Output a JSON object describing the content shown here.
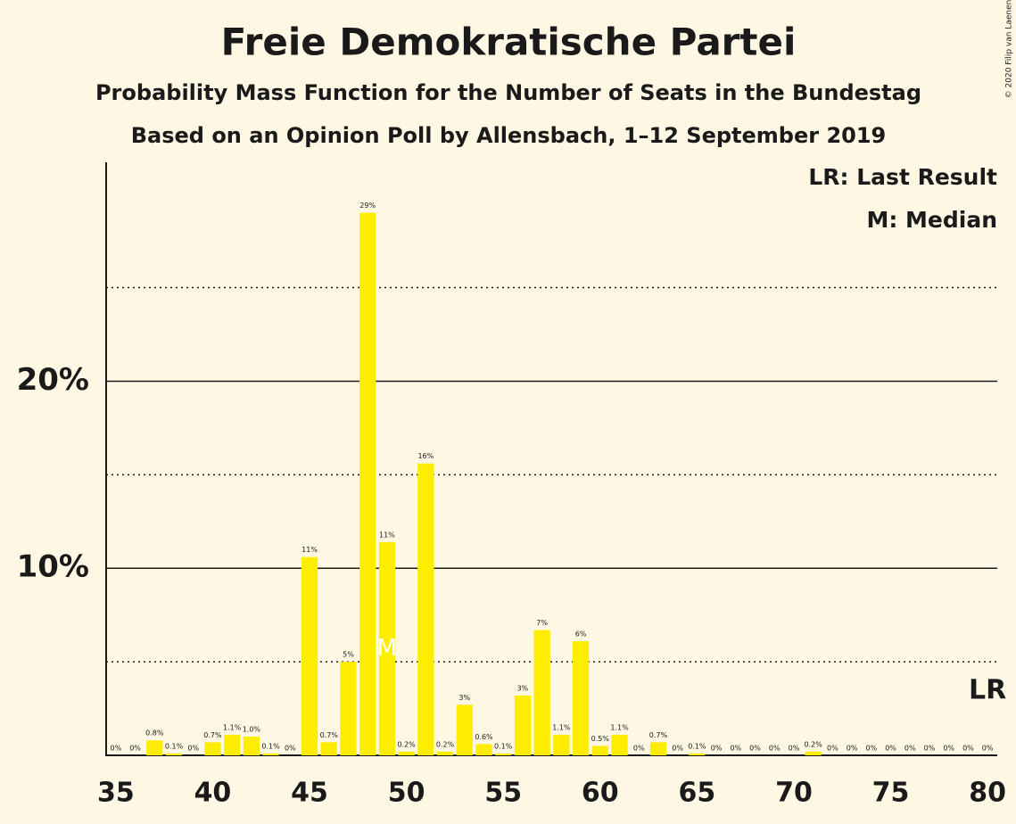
{
  "chart_data": {
    "type": "bar",
    "title": "Freie Demokratische Partei",
    "subtitle": "Probability Mass Function for the Number of Seats in the Bundestag",
    "source": "Based on an Opinion Poll by Allensbach, 1–12 September 2019",
    "legend": [
      "LR: Last Result",
      "M: Median"
    ],
    "copyright": "© 2020 Filip van Laenen",
    "x": [
      35,
      36,
      37,
      38,
      39,
      40,
      41,
      42,
      43,
      44,
      45,
      46,
      47,
      48,
      49,
      50,
      51,
      52,
      53,
      54,
      55,
      56,
      57,
      58,
      59,
      60,
      61,
      62,
      63,
      64,
      65,
      66,
      67,
      68,
      69,
      70,
      71,
      72,
      73,
      74,
      75,
      76,
      77,
      78,
      79,
      80
    ],
    "values": [
      0,
      0,
      0.8,
      0.1,
      0,
      0.7,
      1.1,
      1.0,
      0.1,
      0,
      10.6,
      0.7,
      5.0,
      29.0,
      11.4,
      0.2,
      15.6,
      0.2,
      2.7,
      0.6,
      0.1,
      3.2,
      6.7,
      1.1,
      6.1,
      0.5,
      1.1,
      0,
      0.7,
      0,
      0.1,
      0,
      0,
      0,
      0,
      0,
      0.2,
      0,
      0,
      0,
      0,
      0,
      0,
      0,
      0,
      0
    ],
    "value_labels": [
      "0%",
      "0%",
      "0.8%",
      "0.1%",
      "0%",
      "0.7%",
      "1.1%",
      "1.0%",
      "0.1%",
      "0%",
      "11%",
      "0.7%",
      "5%",
      "29%",
      "11%",
      "0.2%",
      "16%",
      "0.2%",
      "3%",
      "0.6%",
      "0.1%",
      "3%",
      "7%",
      "1.1%",
      "6%",
      "0.5%",
      "1.1%",
      "0%",
      "0.7%",
      "0%",
      "0.1%",
      "0%",
      "0%",
      "0%",
      "0%",
      "0%",
      "0.2%",
      "0%",
      "0%",
      "0%",
      "0%",
      "0%",
      "0%",
      "0%",
      "0%",
      "0%"
    ],
    "color": "#ffed00",
    "xlim": [
      34.5,
      80.5
    ],
    "xticks": [
      35,
      40,
      45,
      50,
      55,
      60,
      65,
      70,
      75,
      80
    ],
    "ylim": [
      0,
      31.7
    ],
    "yticks": [
      {
        "value": 10,
        "label": "10%"
      },
      {
        "value": 20,
        "label": "20%"
      }
    ],
    "minor_yticks": [
      5,
      15,
      25
    ],
    "median": {
      "x": 49,
      "label": "M"
    },
    "last_result": {
      "x": 80,
      "label": "LR"
    }
  }
}
